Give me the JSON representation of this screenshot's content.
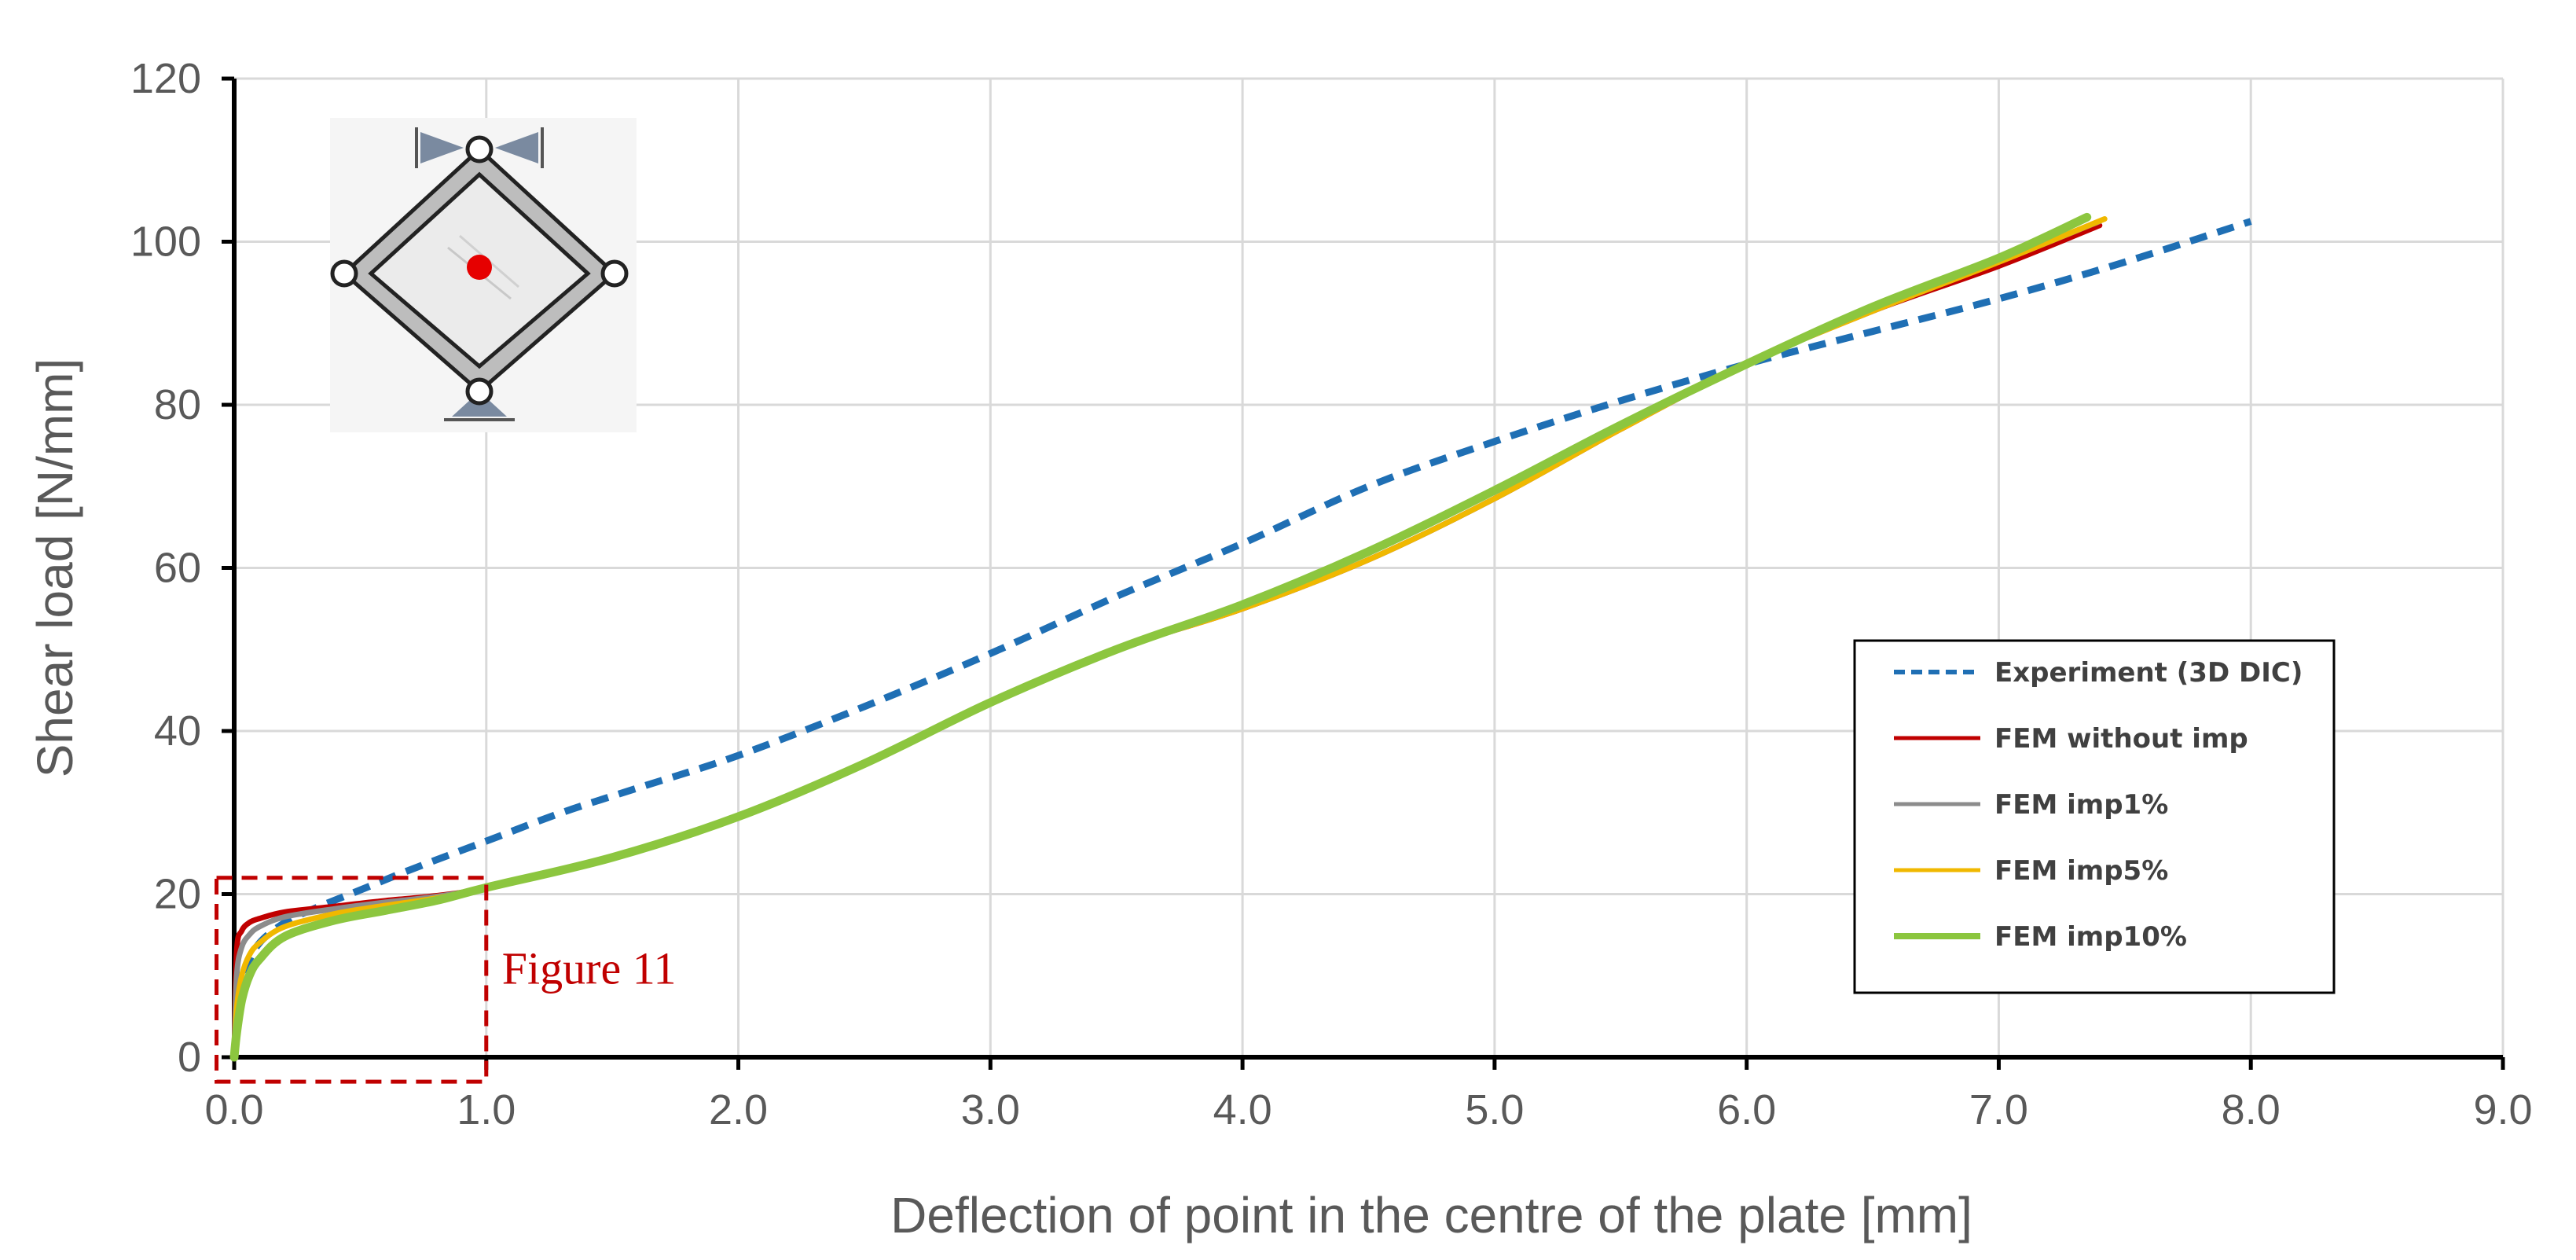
{
  "chart_data": {
    "type": "line",
    "xlabel": "Deflection of point in the centre of the plate [mm]",
    "ylabel": "Shear load [N/mm]",
    "xlim": [
      0,
      9
    ],
    "ylim": [
      0,
      120
    ],
    "x_ticks": [
      "0.0",
      "1.0",
      "2.0",
      "3.0",
      "4.0",
      "5.0",
      "6.0",
      "7.0",
      "8.0",
      "9.0"
    ],
    "y_ticks": [
      "0",
      "20",
      "40",
      "60",
      "80",
      "100",
      "120"
    ],
    "grid": true,
    "legend_position": "right",
    "series": [
      {
        "name": "Experiment (3D DIC)",
        "color": "#1f6fb4",
        "dash": true,
        "x": [
          0.0,
          0.02,
          0.05,
          0.1,
          0.2,
          0.3,
          0.5,
          0.7,
          1.0,
          1.3,
          1.6,
          2.0,
          2.5,
          3.0,
          3.5,
          4.0,
          4.5,
          5.0,
          5.5,
          6.0,
          6.5,
          7.0,
          7.5,
          8.0
        ],
        "y": [
          0.0,
          7.0,
          11.0,
          14.0,
          16.5,
          18.0,
          20.5,
          23.0,
          26.5,
          30.0,
          33.0,
          37.0,
          43.0,
          49.5,
          56.5,
          63.0,
          70.0,
          75.5,
          80.5,
          85.0,
          89.0,
          93.0,
          97.5,
          102.5
        ]
      },
      {
        "name": "FEM without imp",
        "color": "#c00000",
        "dash": false,
        "x": [
          0.0,
          0.01,
          0.03,
          0.06,
          0.1,
          0.2,
          0.4,
          0.6,
          0.8,
          1.0,
          1.5,
          2.0,
          2.5,
          3.0,
          3.5,
          4.0,
          4.5,
          5.0,
          5.5,
          6.0,
          6.5,
          7.0,
          7.4
        ],
        "y": [
          0.0,
          13.0,
          15.5,
          16.5,
          17.0,
          17.8,
          18.5,
          19.2,
          19.8,
          20.8,
          24.5,
          29.5,
          36.0,
          43.5,
          50.0,
          55.0,
          61.0,
          68.5,
          77.0,
          85.0,
          91.5,
          97.0,
          102.0
        ]
      },
      {
        "name": "FEM imp1%",
        "color": "#8c8c8c",
        "dash": false,
        "x": [
          0.0,
          0.01,
          0.03,
          0.06,
          0.1,
          0.2,
          0.4,
          0.6,
          0.8,
          1.0,
          1.5,
          2.0,
          2.5,
          3.0,
          3.5,
          4.0,
          4.5,
          5.0,
          5.5,
          6.0,
          6.5,
          7.0,
          7.4
        ],
        "y": [
          0.0,
          10.0,
          13.5,
          15.0,
          16.0,
          17.2,
          18.2,
          19.0,
          19.7,
          20.8,
          24.5,
          29.5,
          36.0,
          43.5,
          50.0,
          55.0,
          61.0,
          68.5,
          77.0,
          85.0,
          91.5,
          97.5,
          102.5
        ]
      },
      {
        "name": "FEM imp5%",
        "color": "#f0b800",
        "dash": false,
        "x": [
          0.0,
          0.01,
          0.03,
          0.06,
          0.1,
          0.2,
          0.4,
          0.6,
          0.8,
          1.0,
          1.5,
          2.0,
          2.5,
          3.0,
          3.5,
          4.0,
          4.5,
          5.0,
          5.5,
          6.0,
          6.5,
          7.0,
          7.42
        ],
        "y": [
          0.0,
          6.0,
          10.0,
          12.5,
          14.0,
          16.0,
          17.6,
          18.6,
          19.5,
          20.8,
          24.5,
          29.5,
          36.0,
          43.5,
          50.0,
          55.0,
          61.0,
          68.5,
          77.0,
          85.0,
          91.5,
          97.5,
          102.8
        ]
      },
      {
        "name": "FEM imp10%",
        "color": "#8cc63f",
        "dash": false,
        "x": [
          0.0,
          0.01,
          0.03,
          0.06,
          0.1,
          0.2,
          0.4,
          0.6,
          0.8,
          1.0,
          1.5,
          2.0,
          2.5,
          3.0,
          3.5,
          4.0,
          4.5,
          5.0,
          5.5,
          6.0,
          6.5,
          7.0,
          7.35
        ],
        "y": [
          0.0,
          3.0,
          7.0,
          10.0,
          12.0,
          14.8,
          16.8,
          18.0,
          19.2,
          20.8,
          24.5,
          29.5,
          36.0,
          43.5,
          50.0,
          55.5,
          62.0,
          69.5,
          77.5,
          85.0,
          92.0,
          98.0,
          103.0
        ]
      }
    ],
    "annotations": [
      {
        "text": "Figure 11",
        "color": "#c00000",
        "x_range": [
          -0.07,
          1.0
        ],
        "y_range": [
          -3,
          22
        ]
      }
    ]
  }
}
